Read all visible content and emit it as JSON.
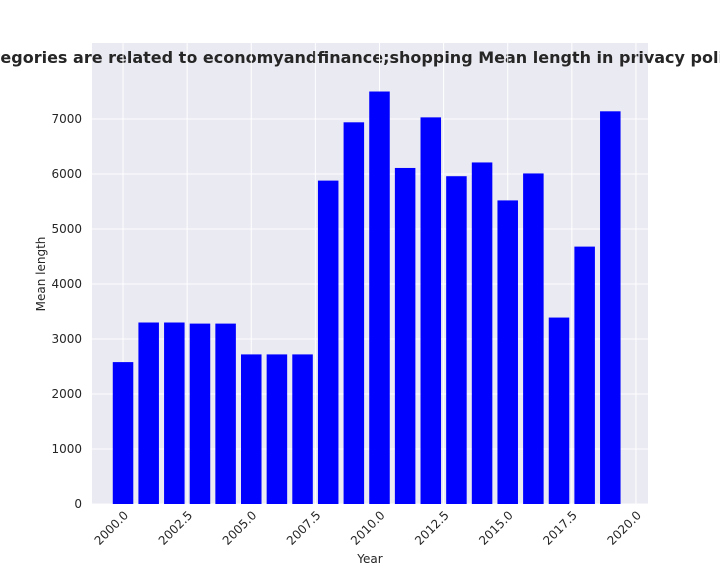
{
  "chart_data": {
    "type": "bar",
    "title": "hen categories are related to economyandfinance;shopping Mean length in privacy policies by",
    "xlabel": "Year",
    "ylabel": "Mean length",
    "x": [
      2000,
      2001,
      2002,
      2003,
      2004,
      2005,
      2006,
      2007,
      2008,
      2009,
      2010,
      2011,
      2012,
      2013,
      2014,
      2015,
      2016,
      2017,
      2018,
      2019
    ],
    "values": [
      2580,
      3300,
      3300,
      3280,
      3280,
      2720,
      2720,
      2720,
      5880,
      6940,
      7500,
      6110,
      7030,
      5960,
      6210,
      5520,
      6010,
      3390,
      4680,
      7140
    ],
    "color": "#0000ff",
    "xlim": [
      1998.79,
      2020.47
    ],
    "xticks": [
      {
        "value": 2000,
        "label": "2000.0"
      },
      {
        "value": 2002.5,
        "label": "2002.5"
      },
      {
        "value": 2005,
        "label": "2005.0"
      },
      {
        "value": 2007.5,
        "label": "2007.5"
      },
      {
        "value": 2010,
        "label": "2010.0"
      },
      {
        "value": 2012.5,
        "label": "2012.5"
      },
      {
        "value": 2015,
        "label": "2015.0"
      },
      {
        "value": 2017.5,
        "label": "2017.5"
      },
      {
        "value": 2020,
        "label": "2020.0"
      }
    ],
    "ylim": [
      0,
      8382
    ],
    "yticks": [
      0,
      1000,
      2000,
      3000,
      4000,
      5000,
      6000,
      7000
    ],
    "grid": true
  }
}
